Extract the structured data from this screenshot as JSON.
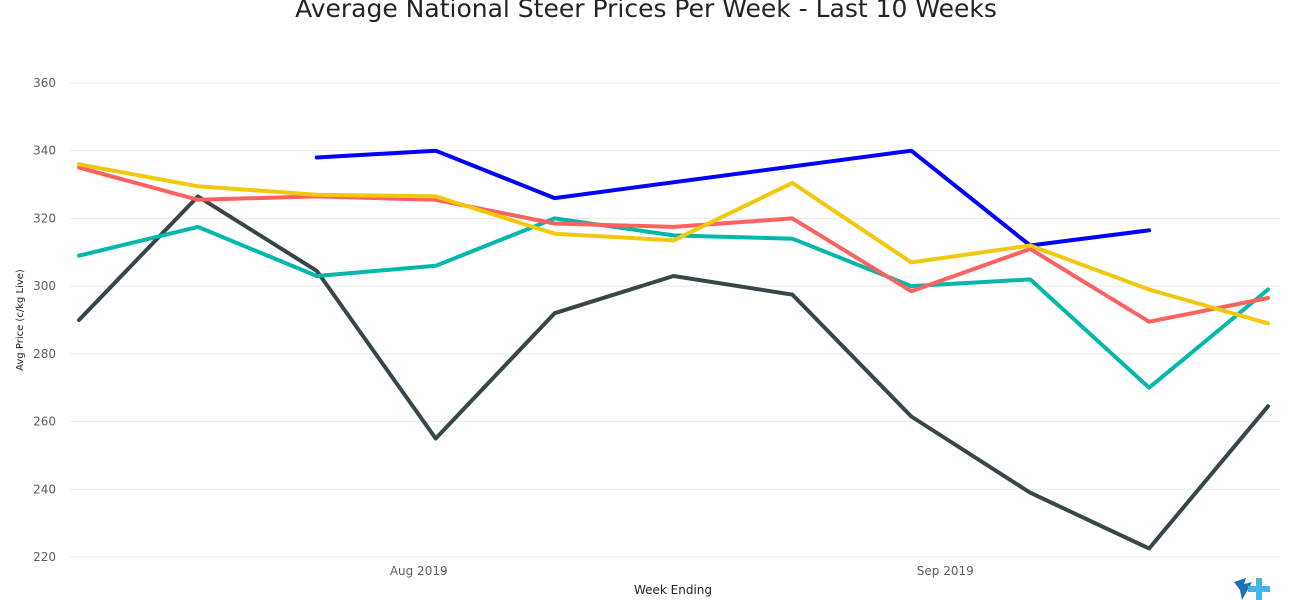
{
  "chart_data": {
    "type": "line",
    "title": "Average National Steer Prices Per Week - Last 10 Weeks",
    "xlabel": "Week Ending",
    "ylabel": "Avg Price (c/kg Live)",
    "ylim": [
      220,
      360
    ],
    "yticks": [
      220,
      240,
      260,
      280,
      300,
      320,
      340,
      360
    ],
    "grid": true,
    "x": [
      "2019-07-12",
      "2019-07-19",
      "2019-07-26",
      "2019-08-02",
      "2019-08-09",
      "2019-08-16",
      "2019-08-23",
      "2019-08-30",
      "2019-09-06",
      "2019-09-13",
      "2019-09-20"
    ],
    "xtick_labels": [
      {
        "label": "Aug 2019",
        "x": "2019-08-01"
      },
      {
        "label": "Sep 2019",
        "x": "2019-09-01"
      }
    ],
    "series": [
      {
        "color": "#0000ff",
        "values": [
          null,
          null,
          338,
          340,
          326,
          null,
          null,
          340,
          312,
          316.5,
          null
        ]
      },
      {
        "color": "#374649",
        "values": [
          290,
          326.5,
          304.5,
          255,
          292,
          303,
          297.5,
          261.5,
          239,
          222.5,
          264.5
        ]
      },
      {
        "color": "#01b8aa",
        "values": [
          309,
          317.5,
          303,
          306,
          320,
          315,
          314,
          300,
          302,
          270,
          299
        ]
      },
      {
        "color": "#fd625e",
        "values": [
          335,
          325.5,
          326.5,
          325.5,
          318.5,
          317.5,
          320,
          298.5,
          311,
          289.5,
          296.5
        ]
      },
      {
        "color": "#f2c80f",
        "values": [
          336,
          329.5,
          327,
          326.5,
          315.5,
          313.5,
          330.5,
          307,
          312,
          299,
          289
        ]
      }
    ]
  },
  "logo": {
    "name": "brand-logo-icon",
    "colors": [
      "#1f6fb5",
      "#3fb8e8"
    ]
  }
}
